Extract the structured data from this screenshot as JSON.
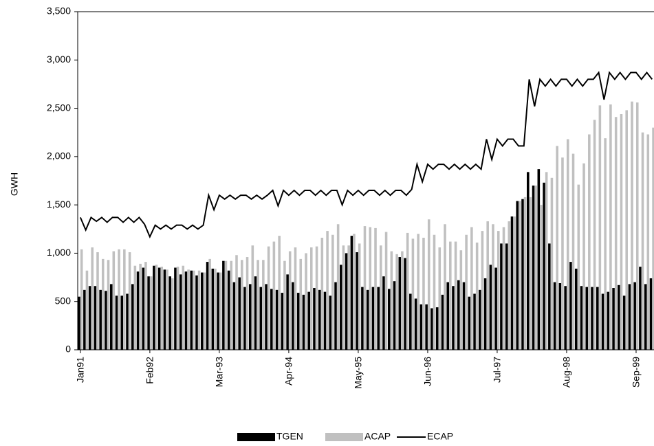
{
  "chart_data": {
    "type": "bar-line",
    "y_label": "GWH",
    "categories": [
      "Jan91",
      null,
      null,
      null,
      null,
      null,
      null,
      null,
      null,
      null,
      null,
      null,
      null,
      "Feb92",
      null,
      null,
      null,
      null,
      null,
      null,
      null,
      null,
      null,
      null,
      null,
      null,
      "Mar-93",
      null,
      null,
      null,
      null,
      null,
      null,
      null,
      null,
      null,
      null,
      null,
      null,
      "Apr-94",
      null,
      null,
      null,
      null,
      null,
      null,
      null,
      null,
      null,
      null,
      null,
      null,
      "May-95",
      null,
      null,
      null,
      null,
      null,
      null,
      null,
      null,
      null,
      null,
      null,
      null,
      "Jun-96",
      null,
      null,
      null,
      null,
      null,
      null,
      null,
      null,
      null,
      null,
      null,
      null,
      "Jul-97",
      null,
      null,
      null,
      null,
      null,
      null,
      null,
      null,
      null,
      null,
      null,
      null,
      "Aug-98",
      null,
      null,
      null,
      null,
      null,
      null,
      null,
      null,
      null,
      null,
      null,
      null,
      "Sep-99",
      null,
      null,
      null
    ],
    "series": [
      {
        "name": "TGEN",
        "type": "bar",
        "color": "#000000",
        "values": [
          550,
          620,
          660,
          660,
          620,
          610,
          680,
          560,
          560,
          580,
          680,
          810,
          850,
          760,
          870,
          850,
          830,
          760,
          850,
          780,
          810,
          820,
          770,
          800,
          910,
          840,
          800,
          920,
          820,
          700,
          750,
          650,
          680,
          760,
          650,
          680,
          630,
          620,
          590,
          780,
          700,
          590,
          570,
          600,
          640,
          620,
          600,
          560,
          700,
          880,
          1000,
          1180,
          1010,
          650,
          620,
          650,
          650,
          760,
          630,
          710,
          960,
          950,
          580,
          530,
          470,
          470,
          430,
          440,
          570,
          700,
          660,
          720,
          700,
          550,
          580,
          620,
          740,
          880,
          850,
          1100,
          1100,
          1380,
          1540,
          1560,
          1840,
          1700,
          1870,
          1730,
          1100,
          700,
          690,
          660,
          910,
          840,
          660,
          650,
          650,
          650,
          580,
          600,
          640,
          670,
          560,
          680,
          700,
          860,
          680,
          740
        ]
      },
      {
        "name": "ACAP",
        "type": "bar",
        "color": "#c0c0c0",
        "values": [
          1040,
          820,
          1060,
          1010,
          940,
          930,
          1020,
          1040,
          1040,
          1010,
          870,
          890,
          910,
          760,
          880,
          860,
          830,
          740,
          860,
          870,
          830,
          820,
          820,
          800,
          940,
          840,
          800,
          920,
          920,
          980,
          930,
          960,
          1080,
          930,
          930,
          1070,
          1120,
          1180,
          920,
          1020,
          1060,
          940,
          1000,
          1060,
          1070,
          1160,
          1230,
          1190,
          1300,
          1080,
          1080,
          1200,
          1100,
          1280,
          1270,
          1260,
          1080,
          1220,
          1020,
          990,
          1020,
          1210,
          1150,
          1200,
          1160,
          1350,
          1190,
          1060,
          1300,
          1120,
          1120,
          1030,
          1190,
          1270,
          1110,
          1230,
          1330,
          1300,
          1230,
          1270,
          1330,
          1380,
          1540,
          1580,
          1580,
          1700,
          1500,
          1840,
          1780,
          2110,
          1990,
          2180,
          2030,
          1710,
          1930,
          2230,
          2380,
          2530,
          2190,
          2540,
          2410,
          2440,
          2480,
          2570,
          2560,
          2250,
          2230,
          2300
        ]
      },
      {
        "name": "ECAP",
        "type": "line",
        "color": "#000000",
        "values": [
          1370,
          1240,
          1370,
          1330,
          1370,
          1320,
          1370,
          1370,
          1320,
          1370,
          1320,
          1370,
          1300,
          1170,
          1290,
          1250,
          1290,
          1250,
          1290,
          1290,
          1250,
          1290,
          1250,
          1290,
          1600,
          1450,
          1600,
          1560,
          1600,
          1560,
          1600,
          1600,
          1560,
          1600,
          1560,
          1600,
          1650,
          1490,
          1650,
          1600,
          1650,
          1600,
          1650,
          1650,
          1600,
          1650,
          1600,
          1650,
          1650,
          1500,
          1650,
          1600,
          1650,
          1600,
          1650,
          1650,
          1600,
          1650,
          1600,
          1650,
          1650,
          1600,
          1660,
          1920,
          1740,
          1920,
          1870,
          1920,
          1920,
          1870,
          1920,
          1870,
          1920,
          1870,
          1920,
          1870,
          2180,
          1970,
          2180,
          2110,
          2180,
          2180,
          2110,
          2110,
          2800,
          2520,
          2800,
          2730,
          2800,
          2730,
          2800,
          2800,
          2730,
          2800,
          2730,
          2800,
          2800,
          2870,
          2590,
          2870,
          2800,
          2870,
          2800,
          2870,
          2870,
          2800,
          2870,
          2800
        ]
      }
    ],
    "ylim": [
      0,
      3500
    ],
    "yticks": [
      0,
      500,
      {
        "value": 1000,
        "label": "1,000"
      },
      {
        "value": 1500,
        "label": "1,500"
      },
      {
        "value": 2000,
        "label": "2,000"
      },
      {
        "value": 2500,
        "label": "2,500"
      },
      {
        "value": 3000,
        "label": "3,000"
      },
      {
        "value": 3500,
        "label": "3,500"
      }
    ],
    "legend": "bottom"
  }
}
